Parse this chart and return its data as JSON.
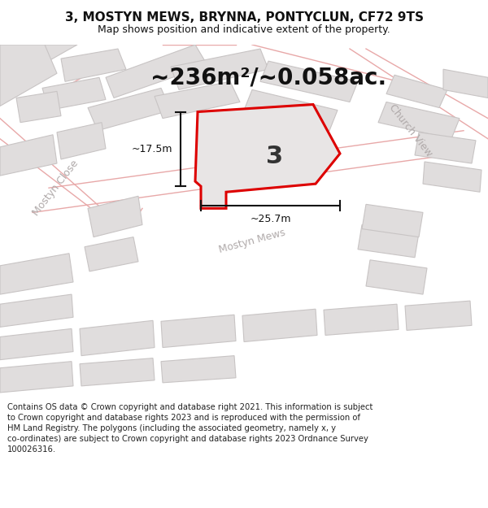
{
  "title": "3, MOSTYN MEWS, BRYNNA, PONTYCLUN, CF72 9TS",
  "subtitle": "Map shows position and indicative extent of the property.",
  "area_text": "~236m²/~0.058ac.",
  "plot_number": "3",
  "dim_width": "~25.7m",
  "dim_height": "~17.5m",
  "footer": "Contains OS data © Crown copyright and database right 2021. This information is subject to Crown copyright and database rights 2023 and is reproduced with the permission of HM Land Registry. The polygons (including the associated geometry, namely x, y co-ordinates) are subject to Crown copyright and database rights 2023 Ordnance Survey 100026316.",
  "bg_color": "#f7f6f6",
  "plot_outline": "#dd0000",
  "plot_fill": "#e8e5e5",
  "building_fill": "#e0dddd",
  "building_edge": "#c8c4c4",
  "road_line_color": "#e8a8a8",
  "dim_color": "#111111",
  "street_text_color": "#b0aaaa",
  "title_color": "#111111",
  "footer_color": "#222222",
  "title_fontsize": 11,
  "subtitle_fontsize": 9,
  "area_fontsize": 20,
  "plot_num_fontsize": 22,
  "dim_fontsize": 9,
  "street_fontsize": 9,
  "footer_fontsize": 7.2
}
